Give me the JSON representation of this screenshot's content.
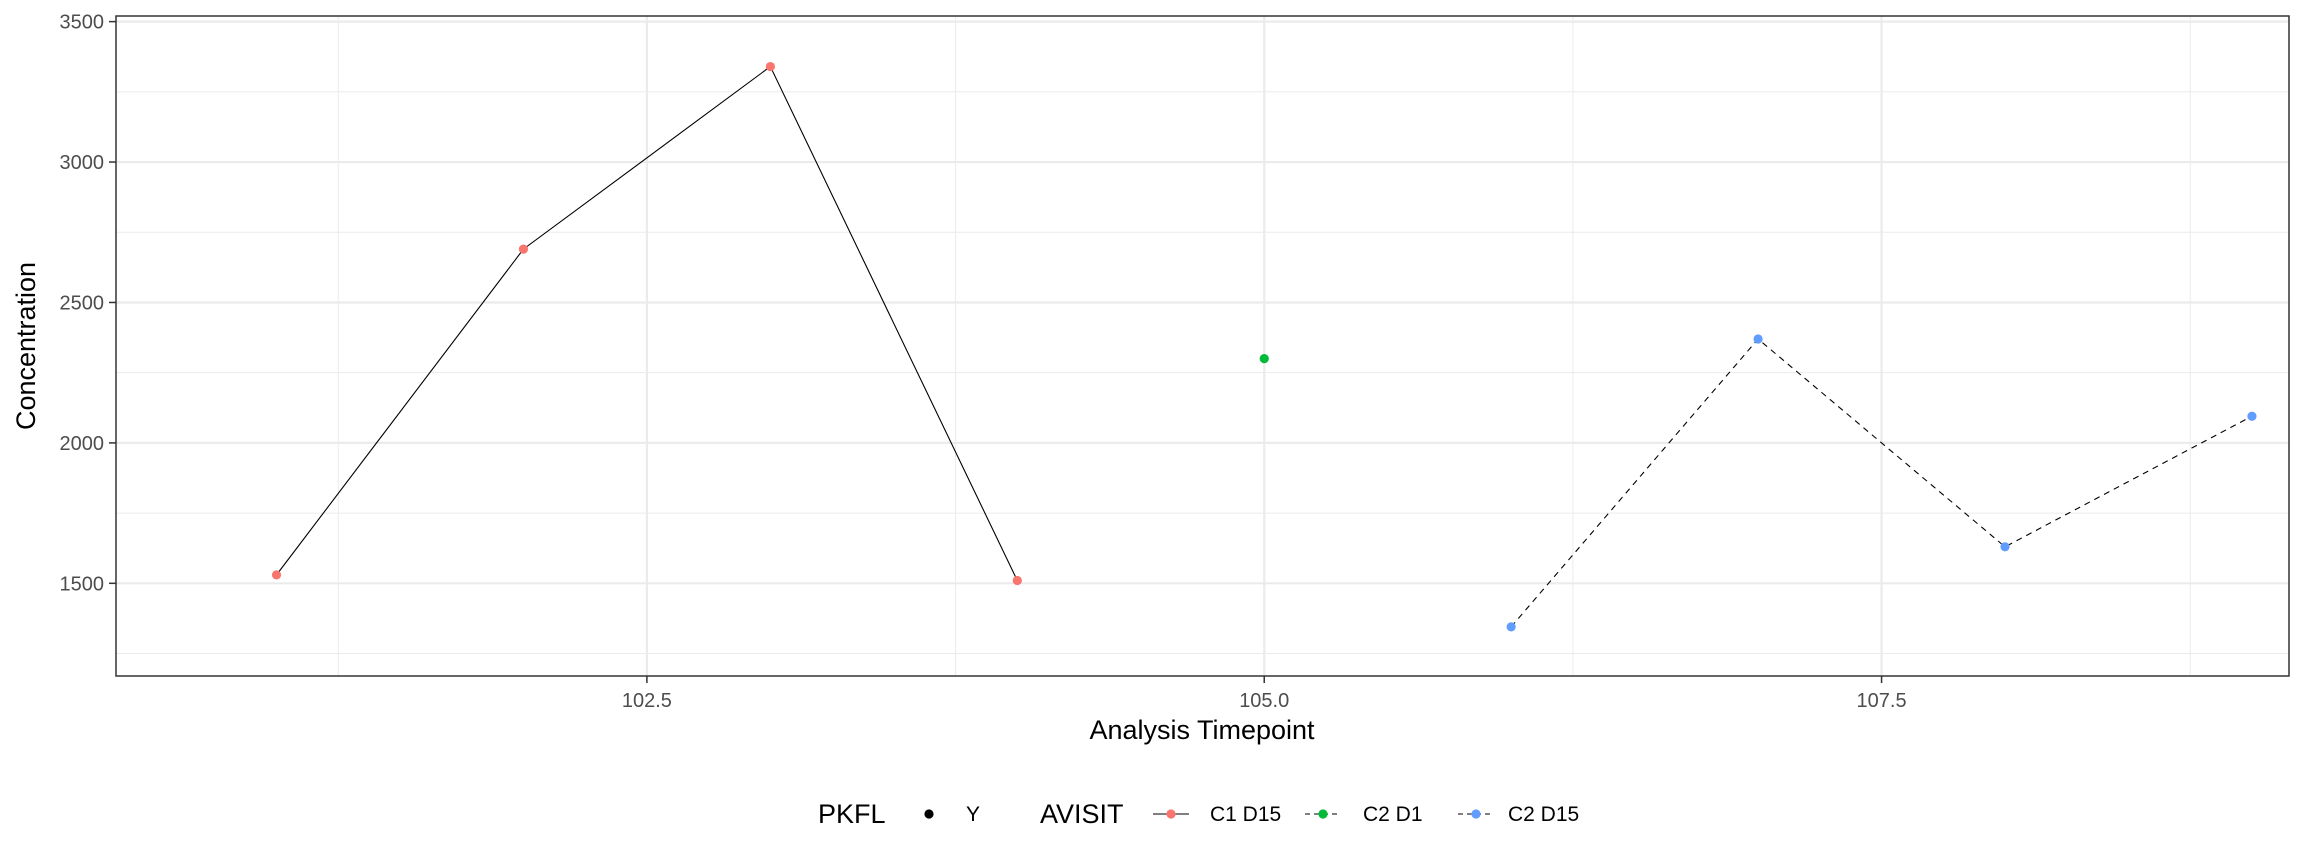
{
  "chart_data": {
    "type": "line",
    "xlabel": "Analysis Timepoint",
    "ylabel": "Concentration",
    "xlim": [
      100.35,
      109.15
    ],
    "ylim": [
      1170,
      3520
    ],
    "x_ticks": [
      102.5,
      105.0,
      107.5
    ],
    "x_tick_labels": [
      "102.5",
      "105.0",
      "107.5"
    ],
    "y_ticks": [
      1500,
      2000,
      2500,
      3000,
      3500
    ],
    "y_tick_labels": [
      "1500",
      "2000",
      "2500",
      "3000",
      "3500"
    ],
    "grid": true,
    "legend_position": "bottom",
    "legend": {
      "shape_title": "PKFL",
      "shape_entries": [
        "Y"
      ],
      "color_title": "AVISIT"
    },
    "series": [
      {
        "name": "C1 D15",
        "color": "#F8766D",
        "linetype": "solid",
        "x": [
          101.0,
          102.0,
          103.0,
          104.0
        ],
        "y": [
          1530,
          2690,
          3340,
          1510
        ]
      },
      {
        "name": "C2 D1",
        "color": "#00BA38",
        "linetype": "dashed",
        "x": [
          105.0
        ],
        "y": [
          2300
        ]
      },
      {
        "name": "C2 D15",
        "color": "#619CFF",
        "linetype": "dashed",
        "x": [
          106.0,
          107.0,
          108.0,
          109.0
        ],
        "y": [
          1345,
          2370,
          1630,
          2095
        ]
      }
    ]
  }
}
